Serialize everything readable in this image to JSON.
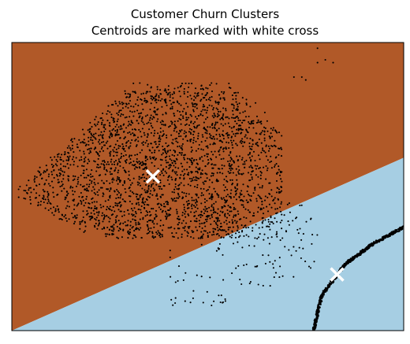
{
  "chart_data": {
    "type": "scatter",
    "title": "Customer Churn Clusters",
    "subtitle": "Centroids are marked with white cross",
    "xlabel": "",
    "ylabel": "",
    "axis_ticks_visible": false,
    "grid": false,
    "legend": "none",
    "xlim": [
      0,
      1
    ],
    "ylim": [
      0,
      1
    ],
    "regions": [
      {
        "cluster": 0,
        "color": "#b15928",
        "boundary_line": [
          [
            0,
            0
          ],
          [
            1,
            0.6
          ]
        ],
        "side": "above"
      },
      {
        "cluster": 1,
        "color": "#a6cee3",
        "side": "below"
      }
    ],
    "centroids": [
      {
        "cluster": 0,
        "x": 0.36,
        "y": 0.535
      },
      {
        "cluster": 1,
        "x": 0.83,
        "y": 0.195
      }
    ],
    "point_color": "#000000",
    "centroid_color": "#ffffff",
    "clusters": [
      {
        "cluster": 0,
        "shape": "dense wedge",
        "extent_x": [
          0.0,
          0.69
        ],
        "extent_y": [
          0.32,
          0.88
        ],
        "approx_points": 2600
      },
      {
        "cluster": 0,
        "shape": "sparse scatter",
        "extent_x": [
          0.4,
          0.78
        ],
        "extent_y": [
          0.08,
          0.45
        ],
        "approx_points": 140
      },
      {
        "cluster": 1,
        "shape": "curved arc",
        "arc": [
          [
            0.77,
            0.0
          ],
          [
            0.79,
            0.12
          ],
          [
            0.85,
            0.23
          ],
          [
            0.92,
            0.3
          ],
          [
            1.0,
            0.36
          ]
        ],
        "approx_points": 500
      },
      {
        "cluster": 0,
        "shape": "outliers",
        "points": [
          [
            0.78,
            0.98
          ],
          [
            0.8,
            0.94
          ],
          [
            0.82,
            0.93
          ],
          [
            0.78,
            0.93
          ],
          [
            0.74,
            0.88
          ],
          [
            0.72,
            0.88
          ],
          [
            0.75,
            0.87
          ]
        ]
      }
    ]
  }
}
